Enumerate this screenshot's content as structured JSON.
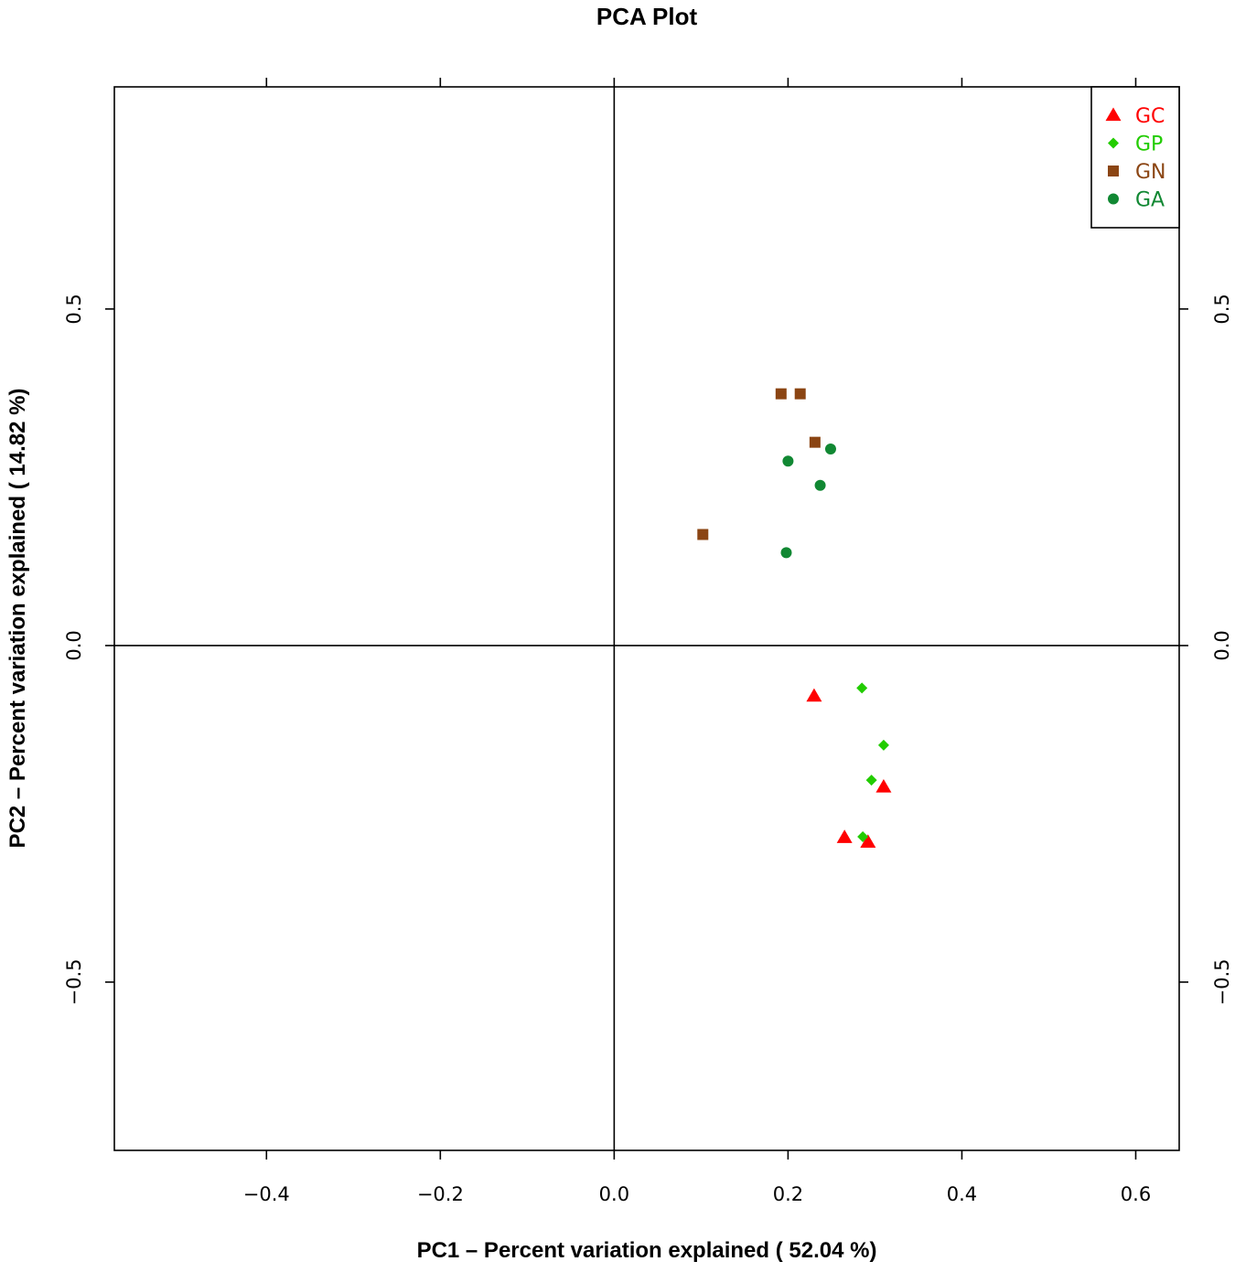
{
  "chart_data": {
    "type": "scatter",
    "title": "PCA Plot",
    "xlabel": "PC1 – Percent variation explained ( 52.04 %)",
    "ylabel": "PC2 – Percent variation explained ( 14.82 %)",
    "xlim": [
      -0.575,
      0.65
    ],
    "ylim": [
      -0.75,
      0.83
    ],
    "x_ticks": [
      -0.4,
      -0.2,
      0.0,
      0.2,
      0.4,
      0.6
    ],
    "x_tick_labels": [
      "−0.4",
      "−0.2",
      "0.0",
      "0.2",
      "0.4",
      "0.6"
    ],
    "y_ticks": [
      0.5,
      0.0,
      -0.5
    ],
    "y_tick_labels": [
      "0.5",
      "0.0",
      "−0.5"
    ],
    "reference_lines": {
      "x": 0.0,
      "y": 0.0
    },
    "grid": false,
    "legend_position": "top-right",
    "series": [
      {
        "name": "GC",
        "marker": "triangle",
        "color": "#ff0000",
        "points": [
          [
            0.23,
            -0.075
          ],
          [
            0.31,
            -0.21
          ],
          [
            0.265,
            -0.285
          ],
          [
            0.292,
            -0.292
          ]
        ]
      },
      {
        "name": "GP",
        "marker": "diamond",
        "color": "#22cc00",
        "points": [
          [
            0.285,
            -0.063
          ],
          [
            0.31,
            -0.148
          ],
          [
            0.296,
            -0.2
          ],
          [
            0.286,
            -0.284
          ]
        ]
      },
      {
        "name": "GN",
        "marker": "square",
        "color": "#8b4513",
        "points": [
          [
            0.192,
            0.374
          ],
          [
            0.214,
            0.374
          ],
          [
            0.231,
            0.302
          ],
          [
            0.102,
            0.165
          ]
        ]
      },
      {
        "name": "GA",
        "marker": "circle",
        "color": "#118833",
        "points": [
          [
            0.2,
            0.274
          ],
          [
            0.249,
            0.292
          ],
          [
            0.237,
            0.238
          ],
          [
            0.198,
            0.138
          ]
        ]
      }
    ]
  }
}
